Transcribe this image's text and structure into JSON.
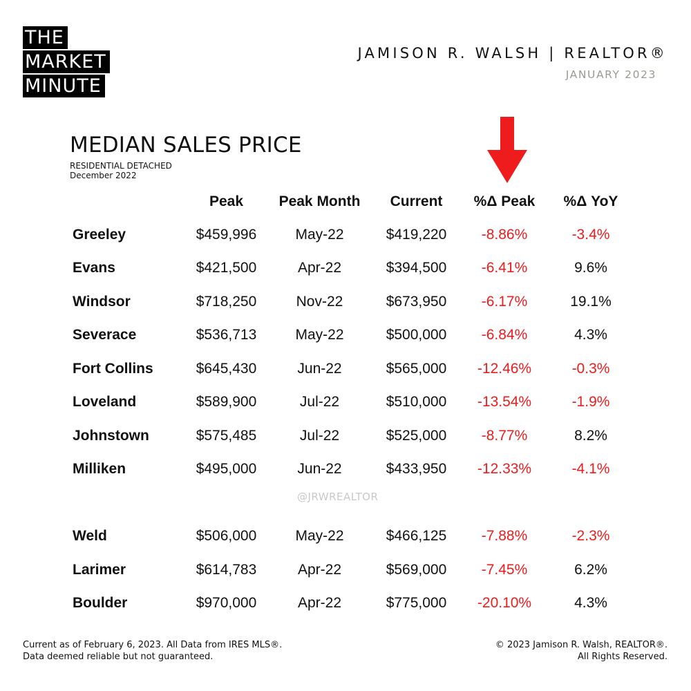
{
  "brand": {
    "line1": "THE",
    "line2": "MARKET",
    "line3": "MINUTE"
  },
  "agent": "JAMISON R. WALSH | REALTOR®",
  "date": "JANUARY 2023",
  "title": "MEDIAN SALES PRICE",
  "subtitle": {
    "line1": "RESIDENTIAL DETACHED",
    "line2": "December 2022"
  },
  "colors": {
    "negative": "#ee1c1c",
    "arrow": "#ee1c1c",
    "brand_bg": "#000000"
  },
  "headers": {
    "peak": "Peak",
    "peak_month": "Peak Month",
    "current": "Current",
    "pct_peak": "%Δ Peak",
    "pct_yoy": "%Δ YoY"
  },
  "rows": [
    {
      "city": "Greeley",
      "peak": "$459,996",
      "month": "May-22",
      "current": "$419,220",
      "pct_peak": "-8.86%",
      "yoy": "-3.4%"
    },
    {
      "city": "Evans",
      "peak": "$421,500",
      "month": "Apr-22",
      "current": "$394,500",
      "pct_peak": "-6.41%",
      "yoy": "9.6%"
    },
    {
      "city": "Windsor",
      "peak": "$718,250",
      "month": "Nov-22",
      "current": "$673,950",
      "pct_peak": "-6.17%",
      "yoy": "19.1%"
    },
    {
      "city": "Severace",
      "peak": "$536,713",
      "month": "May-22",
      "current": "$500,000",
      "pct_peak": "-6.84%",
      "yoy": "4.3%"
    },
    {
      "city": "Fort Collins",
      "peak": "$645,430",
      "month": "Jun-22",
      "current": "$565,000",
      "pct_peak": "-12.46%",
      "yoy": "-0.3%"
    },
    {
      "city": "Loveland",
      "peak": "$589,900",
      "month": "Jul-22",
      "current": "$510,000",
      "pct_peak": "-13.54%",
      "yoy": "-1.9%"
    },
    {
      "city": "Johnstown",
      "peak": "$575,485",
      "month": "Jul-22",
      "current": "$525,000",
      "pct_peak": "-8.77%",
      "yoy": "8.2%"
    },
    {
      "city": "Milliken",
      "peak": "$495,000",
      "month": "Jun-22",
      "current": "$433,950",
      "pct_peak": "-12.33%",
      "yoy": "-4.1%"
    },
    {
      "city": "Weld",
      "peak": "$506,000",
      "month": "May-22",
      "current": "$466,125",
      "pct_peak": "-7.88%",
      "yoy": "-2.3%"
    },
    {
      "city": "Larimer",
      "peak": "$614,783",
      "month": "Apr-22",
      "current": "$569,000",
      "pct_peak": "-7.45%",
      "yoy": "6.2%"
    },
    {
      "city": "Boulder",
      "peak": "$970,000",
      "month": "Apr-22",
      "current": "$775,000",
      "pct_peak": "-20.10%",
      "yoy": "4.3%"
    }
  ],
  "watermark": "@JRWREALTOR",
  "footer": {
    "left_line1": "Current as of February 6, 2023. All Data from IRES MLS®.",
    "left_line2": "Data deemed reliable but not guaranteed.",
    "right_line1": "© 2023 Jamison R. Walsh, REALTOR®.",
    "right_line2": "All Rights Reserved."
  }
}
